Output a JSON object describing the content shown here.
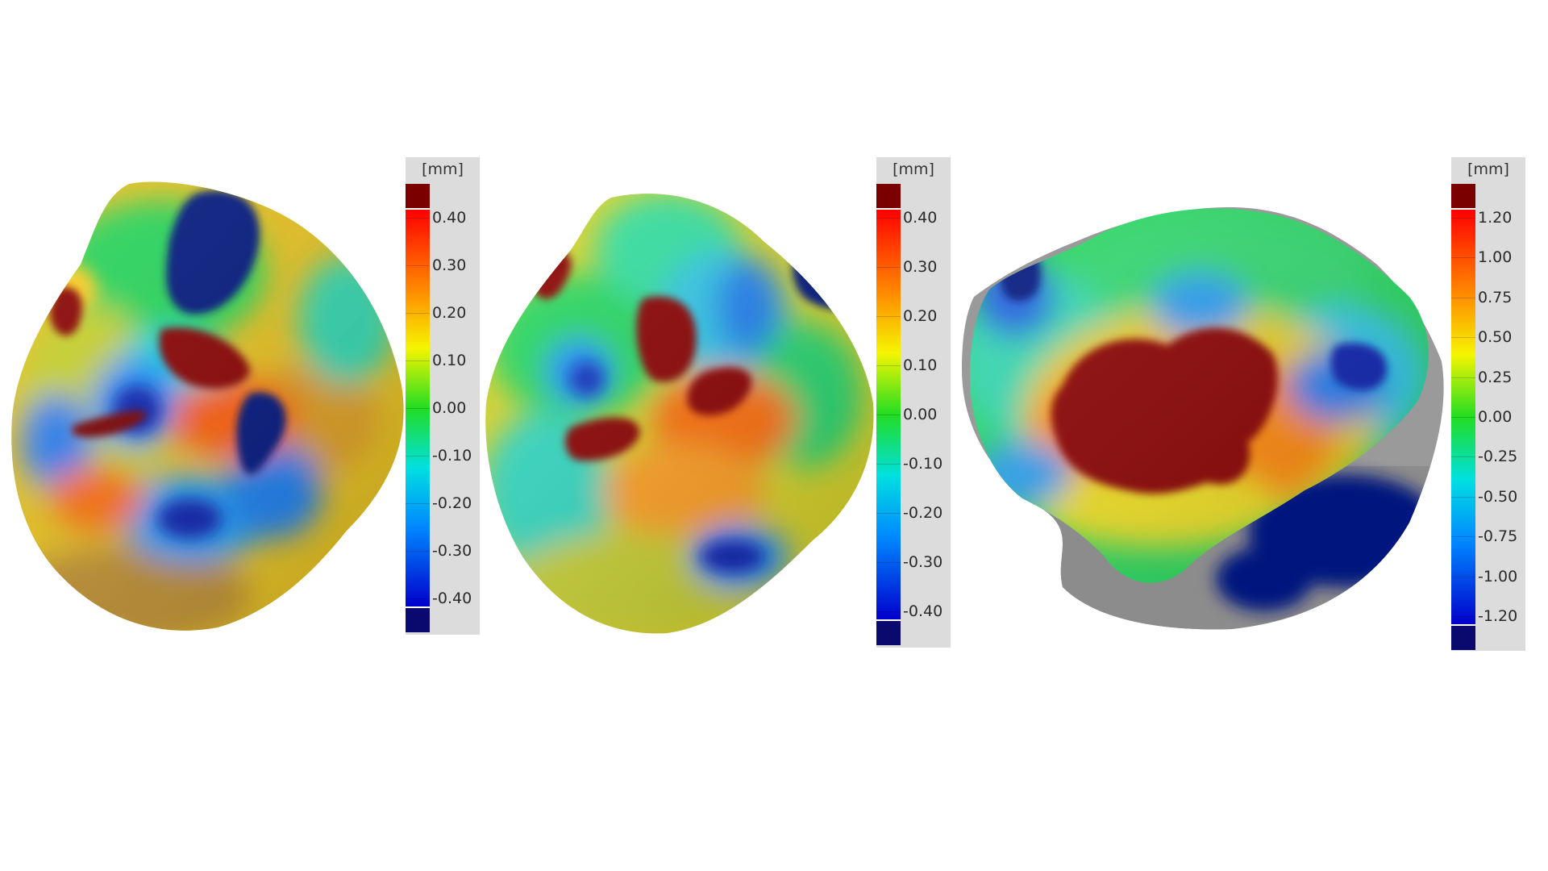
{
  "image": {
    "description_colors": {
      "dark_red": "#7a0000",
      "red": "#ff2a00",
      "orange": "#ff8c00",
      "yellow": "#f2f200",
      "green": "#22dd22",
      "cyan": "#00e8e8",
      "blue": "#0a5cff",
      "dark_blue": "#00007a",
      "gray": "#9a9a9a"
    }
  },
  "legends": [
    {
      "unit": "[mm]",
      "ticks": [
        "0.40",
        "0.30",
        "0.20",
        "0.10",
        "0.00",
        "-0.10",
        "-0.20",
        "-0.30",
        "-0.40"
      ]
    },
    {
      "unit": "[mm]",
      "ticks": [
        "0.40",
        "0.30",
        "0.20",
        "0.10",
        "0.00",
        "-0.10",
        "-0.20",
        "-0.30",
        "-0.40"
      ]
    },
    {
      "unit": "[mm]",
      "ticks": [
        "1.20",
        "1.00",
        "0.75",
        "0.50",
        "0.25",
        "0.00",
        "-0.25",
        "-0.50",
        "-0.75",
        "-1.00",
        "-1.20"
      ]
    }
  ]
}
